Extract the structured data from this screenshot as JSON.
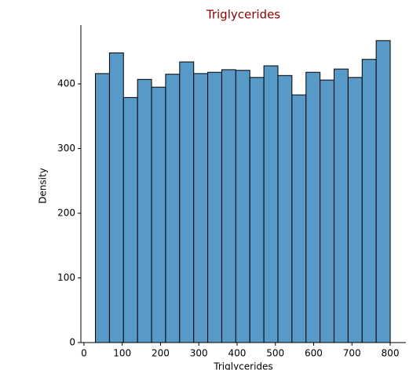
{
  "chart_data": {
    "type": "histogram",
    "title": "Triglycerides",
    "xlabel": "Triglycerides",
    "ylabel": "Density",
    "bins": [
      30,
      66.7,
      103.3,
      140,
      176.7,
      213.3,
      250,
      286.7,
      323.3,
      360,
      396.7,
      433.3,
      470,
      506.7,
      543.3,
      580,
      616.7,
      653.3,
      690,
      726.7,
      763.3,
      800
    ],
    "values": [
      416,
      448,
      379,
      407,
      395,
      415,
      434,
      416,
      418,
      422,
      421,
      410,
      428,
      413,
      383,
      418,
      406,
      423,
      410,
      438,
      467
    ],
    "color": "#5799c7",
    "title_color": "#8b0000",
    "xlim": [
      -8,
      841
    ],
    "ylim": [
      0,
      491
    ],
    "xticks": [
      0,
      100,
      200,
      300,
      400,
      500,
      600,
      700,
      800
    ],
    "yticks": [
      0,
      100,
      200,
      300,
      400
    ]
  }
}
